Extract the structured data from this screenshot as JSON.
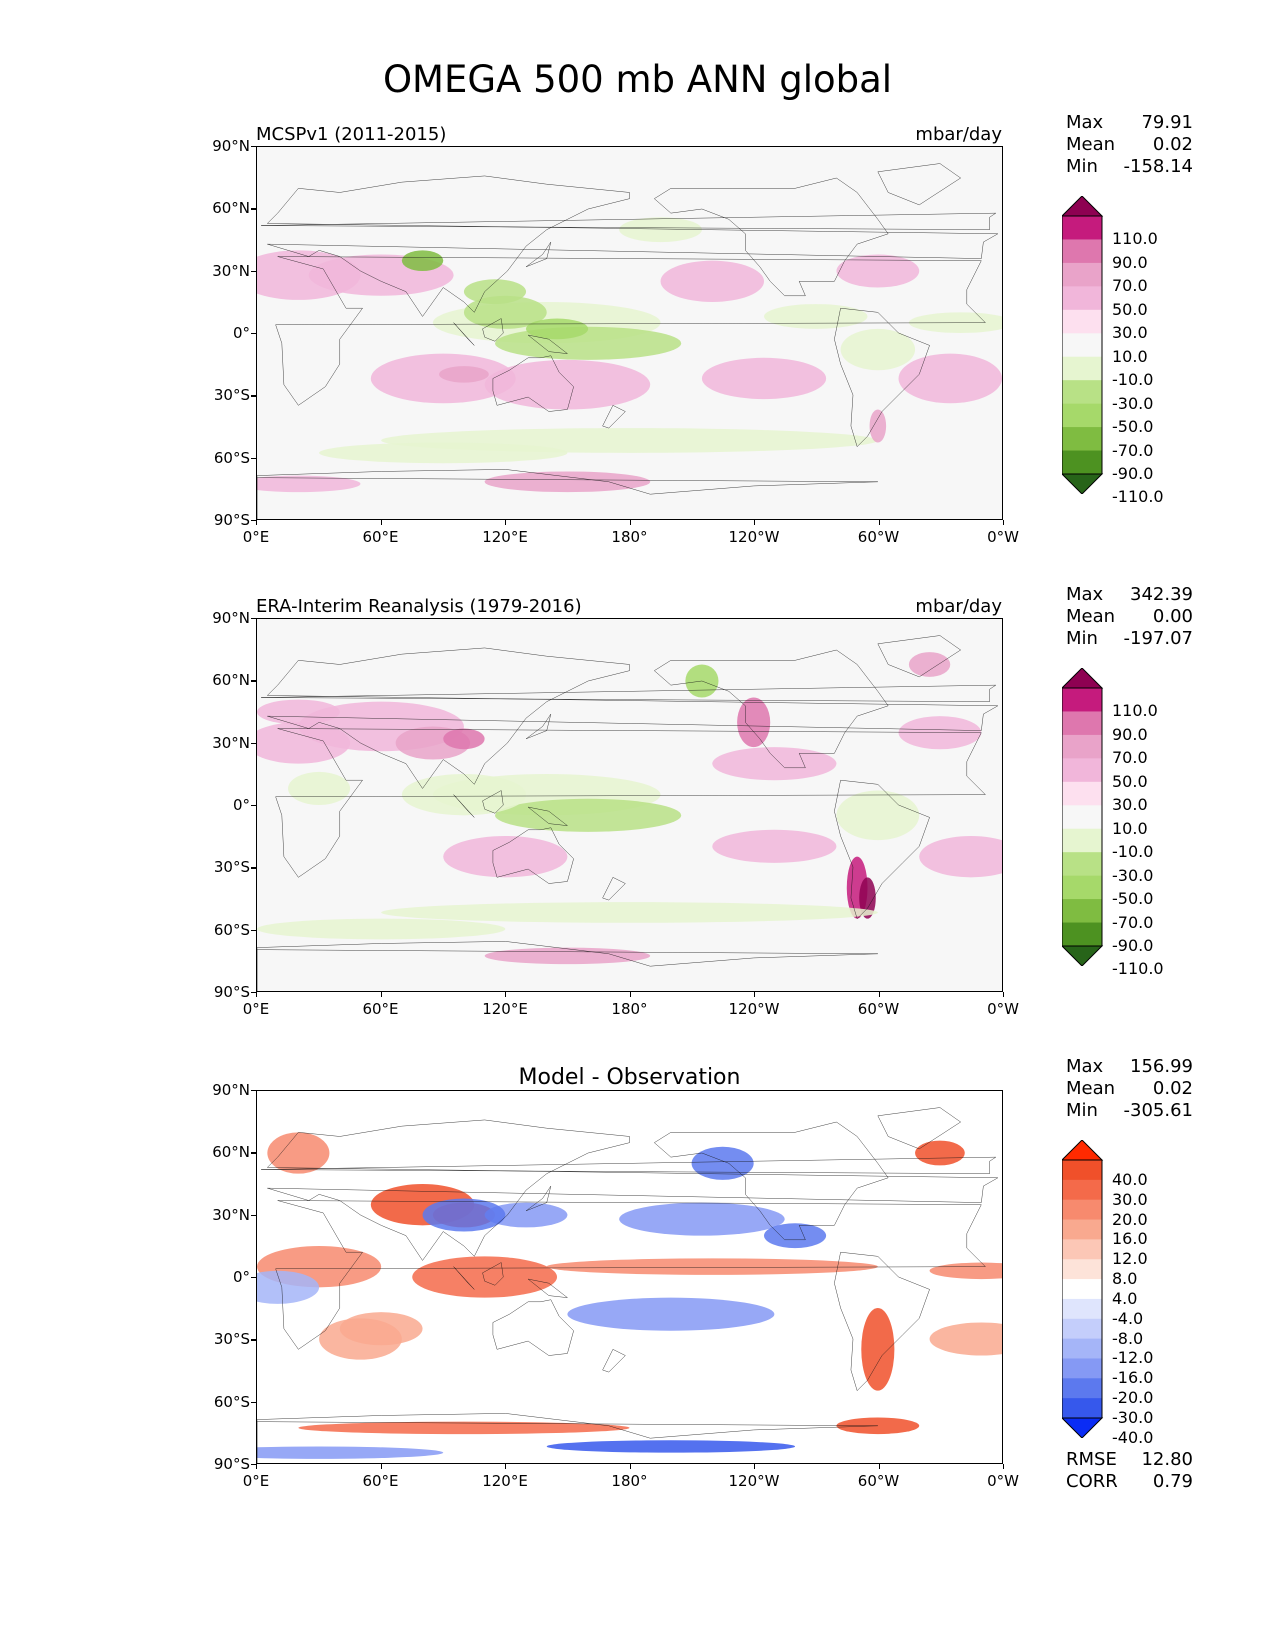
{
  "title": "OMEGA 500 mb ANN global",
  "chart_data": [
    {
      "type": "heatmap",
      "title": "MCSPv1 (2011-2015)",
      "units": "mbar/day",
      "y_ticks": [
        "90°N",
        "60°N",
        "30°N",
        "0°",
        "30°S",
        "60°S",
        "90°S"
      ],
      "x_ticks": [
        "0°E",
        "60°E",
        "120°E",
        "180°",
        "120°W",
        "60°W",
        "0°W"
      ],
      "stats": {
        "max": "79.91",
        "mean": "0.02",
        "min": "-158.14"
      },
      "colorbar_levels": [
        "110.0",
        "90.0",
        "70.0",
        "50.0",
        "30.0",
        "10.0",
        "-10.0",
        "-30.0",
        "-50.0",
        "-70.0",
        "-90.0",
        "-110.0"
      ],
      "colorbar_colors": [
        "#8e0152",
        "#c51b7d",
        "#de77ae",
        "#e9a3c9",
        "#f1b6da",
        "#fde0ef",
        "#f7f7f7",
        "#e6f5d0",
        "#b8e186",
        "#a6d96a",
        "#7fbc41",
        "#4d9221",
        "#276419"
      ]
    },
    {
      "type": "heatmap",
      "title": "ERA-Interim Reanalysis (1979-2016)",
      "units": "mbar/day",
      "y_ticks": [
        "90°N",
        "60°N",
        "30°N",
        "0°",
        "30°S",
        "60°S",
        "90°S"
      ],
      "x_ticks": [
        "0°E",
        "60°E",
        "120°E",
        "180°",
        "120°W",
        "60°W",
        "0°W"
      ],
      "stats": {
        "max": "342.39",
        "mean": "0.00",
        "min": "-197.07"
      },
      "colorbar_levels": [
        "110.0",
        "90.0",
        "70.0",
        "50.0",
        "30.0",
        "10.0",
        "-10.0",
        "-30.0",
        "-50.0",
        "-70.0",
        "-90.0",
        "-110.0"
      ],
      "colorbar_colors": [
        "#8e0152",
        "#c51b7d",
        "#de77ae",
        "#e9a3c9",
        "#f1b6da",
        "#fde0ef",
        "#f7f7f7",
        "#e6f5d0",
        "#b8e186",
        "#a6d96a",
        "#7fbc41",
        "#4d9221",
        "#276419"
      ]
    },
    {
      "type": "heatmap",
      "title": "Model - Observation",
      "y_ticks": [
        "90°N",
        "60°N",
        "30°N",
        "0°",
        "30°S",
        "60°S",
        "90°S"
      ],
      "x_ticks": [
        "0°E",
        "60°E",
        "120°E",
        "180°",
        "120°W",
        "60°W",
        "0°W"
      ],
      "stats": {
        "max": "156.99",
        "mean": "0.02",
        "min": "-305.61"
      },
      "rmse": "12.80",
      "corr": "0.79",
      "colorbar_levels": [
        "40.0",
        "30.0",
        "20.0",
        "16.0",
        "12.0",
        "8.0",
        "4.0",
        "-4.0",
        "-8.0",
        "-12.0",
        "-16.0",
        "-20.0",
        "-30.0",
        "-40.0"
      ],
      "colorbar_colors": [
        "#ff2a00",
        "#f0502a",
        "#f46a4a",
        "#f78a6e",
        "#f9a98f",
        "#fcc7b6",
        "#fde3d9",
        "#ffffff",
        "#dfe5fd",
        "#c4cefb",
        "#a5b5f8",
        "#8599f4",
        "#5c79ee",
        "#3658ec",
        "#0a2cf5"
      ]
    }
  ],
  "labels": {
    "max": "Max",
    "mean": "Mean",
    "min": "Min",
    "rmse": "RMSE",
    "corr": "CORR"
  }
}
